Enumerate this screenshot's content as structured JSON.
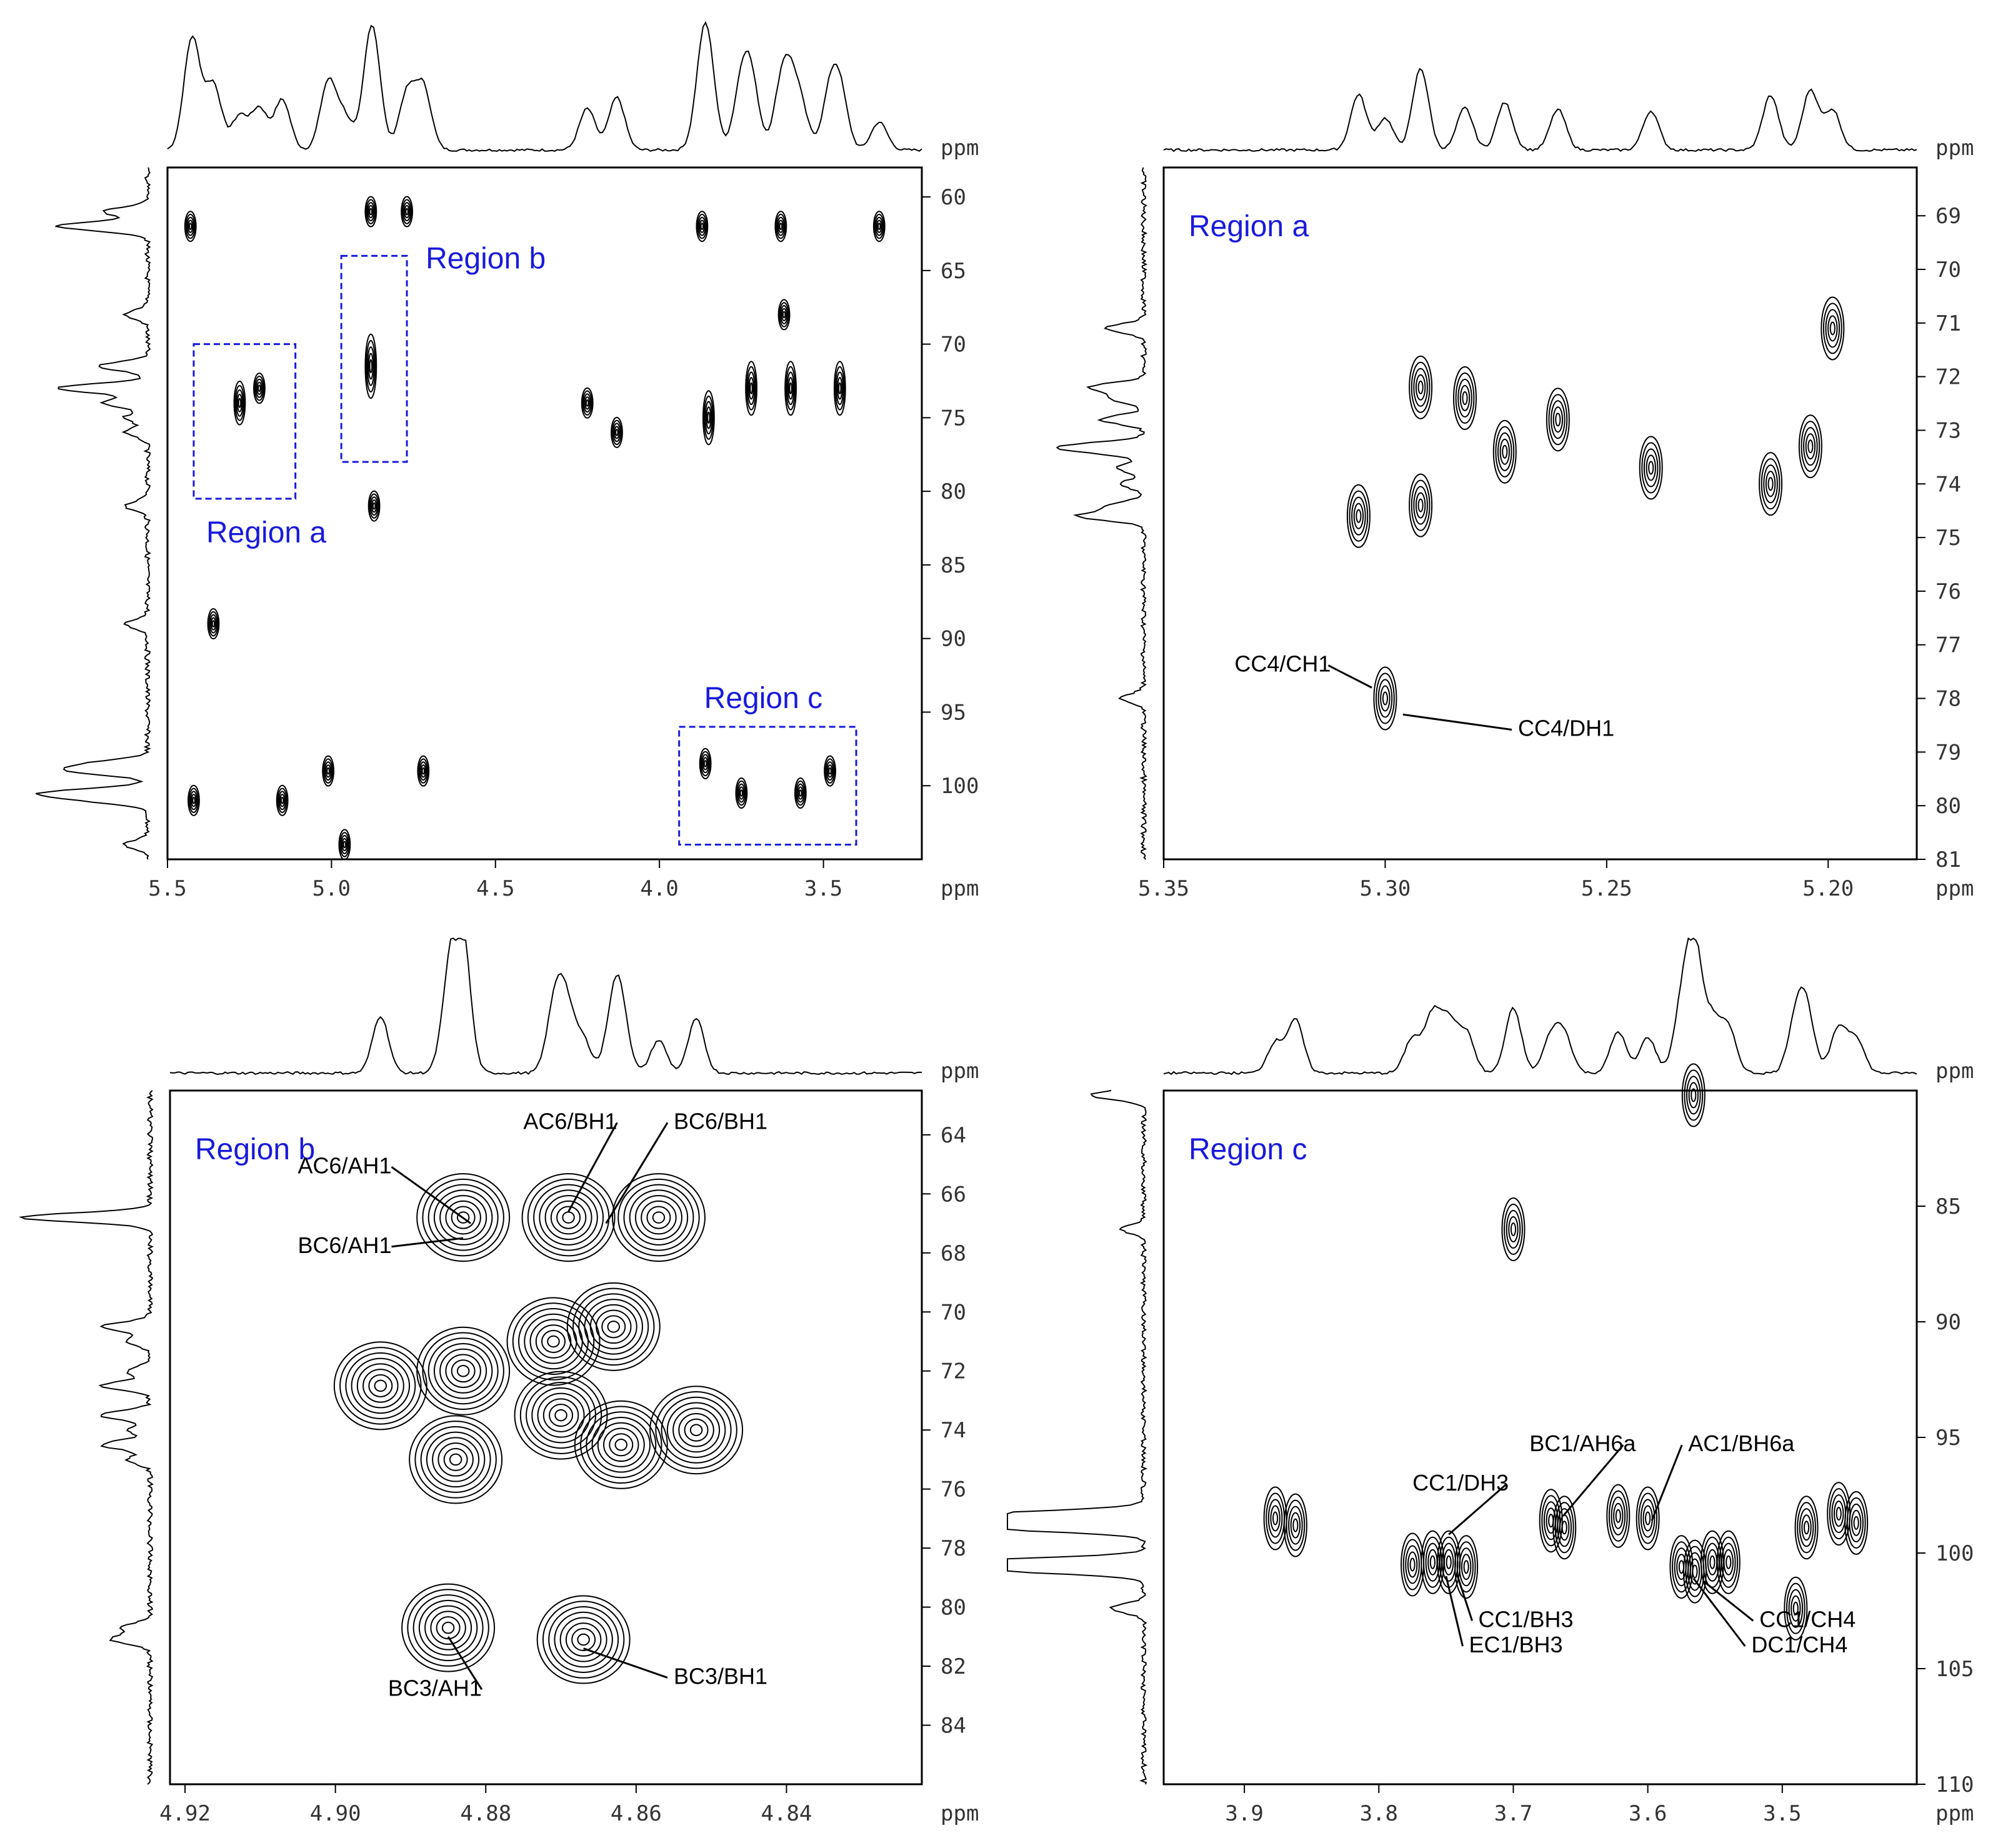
{
  "colors": {
    "frame": "#000000",
    "region": "#1a1adc",
    "contour": "#000000",
    "text": "#333333"
  },
  "chart_data": [
    {
      "type": "heatmap",
      "id": "overview",
      "x_unit": "ppm",
      "y_unit": "ppm",
      "x_reversed": true,
      "xlim": [
        5.5,
        3.2
      ],
      "ylim": [
        58,
        105
      ],
      "xticks": [
        "5.5",
        "5.0",
        "4.5",
        "4.0",
        "3.5"
      ],
      "yticks": [
        "60",
        "65",
        "70",
        "75",
        "80",
        "85",
        "90",
        "95",
        "100"
      ],
      "regions": [
        {
          "name": "Region a",
          "x": [
            5.42,
            5.11
          ],
          "y": [
            70,
            80.5
          ]
        },
        {
          "name": "Region b",
          "x": [
            4.97,
            4.77
          ],
          "y": [
            64,
            78
          ]
        },
        {
          "name": "Region c",
          "x": [
            3.94,
            3.4
          ],
          "y": [
            96,
            104
          ]
        }
      ],
      "peaks": [
        {
          "x": 5.28,
          "y": 74,
          "spread_y": 3
        },
        {
          "x": 5.22,
          "y": 73
        },
        {
          "x": 4.88,
          "y": 71.5,
          "spread_y": 5
        },
        {
          "x": 4.88,
          "y": 61
        },
        {
          "x": 4.77,
          "y": 61
        },
        {
          "x": 5.43,
          "y": 62
        },
        {
          "x": 5.01,
          "y": 99
        },
        {
          "x": 4.72,
          "y": 99
        },
        {
          "x": 5.42,
          "y": 101
        },
        {
          "x": 5.15,
          "y": 101
        },
        {
          "x": 4.96,
          "y": 104
        },
        {
          "x": 4.87,
          "y": 81
        },
        {
          "x": 5.36,
          "y": 89
        },
        {
          "x": 4.22,
          "y": 74
        },
        {
          "x": 4.13,
          "y": 76
        },
        {
          "x": 3.85,
          "y": 75,
          "spread_y": 4
        },
        {
          "x": 3.72,
          "y": 73,
          "spread_y": 4
        },
        {
          "x": 3.6,
          "y": 73,
          "spread_y": 4
        },
        {
          "x": 3.45,
          "y": 73,
          "spread_y": 4
        },
        {
          "x": 3.62,
          "y": 68
        },
        {
          "x": 3.87,
          "y": 62
        },
        {
          "x": 3.63,
          "y": 62
        },
        {
          "x": 3.33,
          "y": 62
        },
        {
          "x": 3.86,
          "y": 98.5
        },
        {
          "x": 3.75,
          "y": 100.5
        },
        {
          "x": 3.57,
          "y": 100.5
        },
        {
          "x": 3.48,
          "y": 99
        }
      ]
    },
    {
      "type": "heatmap",
      "id": "region-a",
      "title": "Region a",
      "x_unit": "ppm",
      "y_unit": "ppm",
      "x_reversed": true,
      "xlim": [
        5.35,
        5.18
      ],
      "ylim": [
        68.1,
        81
      ],
      "xticks": [
        "5.35",
        "5.30",
        "5.25",
        "5.20"
      ],
      "yticks": [
        "69",
        "70",
        "71",
        "72",
        "73",
        "74",
        "75",
        "76",
        "77",
        "78",
        "79",
        "80",
        "81"
      ],
      "labels": [
        {
          "text": "CC4/CH1",
          "x": 5.303,
          "y": 77.8,
          "tx": 5.334,
          "ty": 77.5
        },
        {
          "text": "CC4/DH1",
          "x": 5.296,
          "y": 78.3,
          "tx": 5.27,
          "ty": 78.7
        }
      ],
      "peaks": [
        {
          "x": 5.3,
          "y": 78.0
        },
        {
          "x": 5.292,
          "y": 74.4
        },
        {
          "x": 5.292,
          "y": 72.2
        },
        {
          "x": 5.306,
          "y": 74.6
        },
        {
          "x": 5.282,
          "y": 72.4
        },
        {
          "x": 5.273,
          "y": 73.4
        },
        {
          "x": 5.261,
          "y": 72.8
        },
        {
          "x": 5.24,
          "y": 73.7
        },
        {
          "x": 5.213,
          "y": 74.0
        },
        {
          "x": 5.204,
          "y": 73.3
        },
        {
          "x": 5.199,
          "y": 71.1
        }
      ]
    },
    {
      "type": "heatmap",
      "id": "region-b",
      "title": "Region b",
      "x_unit": "ppm",
      "y_unit": "ppm",
      "x_reversed": true,
      "xlim": [
        4.922,
        4.822
      ],
      "ylim": [
        62.5,
        86
      ],
      "xticks": [
        "4.92",
        "4.90",
        "4.88",
        "4.86",
        "4.84"
      ],
      "yticks": [
        "64",
        "66",
        "68",
        "70",
        "72",
        "74",
        "76",
        "78",
        "80",
        "82",
        "84"
      ],
      "labels": [
        {
          "text": "AC6/BH1",
          "x": 4.869,
          "y": 66.6,
          "tx": 4.875,
          "ty": 63.8
        },
        {
          "text": "BC6/BH1",
          "x": 4.864,
          "y": 67.0,
          "tx": 4.855,
          "ty": 63.8
        },
        {
          "text": "AC6/AH1",
          "x": 4.882,
          "y": 67.0,
          "tx": 4.905,
          "ty": 65.3
        },
        {
          "text": "BC6/AH1",
          "x": 4.883,
          "y": 67.5,
          "tx": 4.905,
          "ty": 68.0
        },
        {
          "text": "BC3/AH1",
          "x": 4.885,
          "y": 81.0,
          "tx": 4.893,
          "ty": 83.0
        },
        {
          "text": "BC3/BH1",
          "x": 4.867,
          "y": 81.4,
          "tx": 4.855,
          "ty": 82.6
        }
      ],
      "peaks": [
        {
          "x": 4.883,
          "y": 66.8
        },
        {
          "x": 4.869,
          "y": 66.8
        },
        {
          "x": 4.857,
          "y": 66.8
        },
        {
          "x": 4.883,
          "y": 72.0
        },
        {
          "x": 4.871,
          "y": 71.0
        },
        {
          "x": 4.863,
          "y": 70.5
        },
        {
          "x": 4.894,
          "y": 72.5
        },
        {
          "x": 4.87,
          "y": 73.5
        },
        {
          "x": 4.884,
          "y": 75.0
        },
        {
          "x": 4.862,
          "y": 74.5
        },
        {
          "x": 4.852,
          "y": 74.0
        },
        {
          "x": 4.885,
          "y": 80.7
        },
        {
          "x": 4.867,
          "y": 81.1
        }
      ]
    },
    {
      "type": "heatmap",
      "id": "region-c",
      "title": "Region c",
      "x_unit": "ppm",
      "y_unit": "ppm",
      "x_reversed": true,
      "xlim": [
        3.96,
        3.4
      ],
      "ylim": [
        80,
        110
      ],
      "xticks": [
        "3.9",
        "3.8",
        "3.7",
        "3.6",
        "3.5"
      ],
      "yticks": [
        "85",
        "90",
        "95",
        "100",
        "105",
        "110"
      ],
      "labels": [
        {
          "text": "CC1/DH3",
          "x": 3.748,
          "y": 99.2,
          "tx": 3.775,
          "ty": 97.3
        },
        {
          "text": "BC1/AH6a",
          "x": 3.663,
          "y": 98.4,
          "tx": 3.688,
          "ty": 95.6
        },
        {
          "text": "AC1/BH6a",
          "x": 3.597,
          "y": 98.6,
          "tx": 3.57,
          "ty": 95.6
        },
        {
          "text": "CC1/BH3",
          "x": 3.742,
          "y": 100.9,
          "tx": 3.726,
          "ty": 103.2
        },
        {
          "text": "EC1/BH3",
          "x": 3.75,
          "y": 101.0,
          "tx": 3.733,
          "ty": 104.3
        },
        {
          "text": "CC1/CH4",
          "x": 3.559,
          "y": 101.2,
          "tx": 3.517,
          "ty": 103.2
        },
        {
          "text": "DC1/CH4",
          "x": 3.566,
          "y": 101.1,
          "tx": 3.523,
          "ty": 104.3
        }
      ],
      "peaks": [
        {
          "x": 3.877,
          "y": 98.5
        },
        {
          "x": 3.862,
          "y": 98.8
        },
        {
          "x": 3.775,
          "y": 100.5
        },
        {
          "x": 3.76,
          "y": 100.4
        },
        {
          "x": 3.748,
          "y": 100.4
        },
        {
          "x": 3.735,
          "y": 100.6
        },
        {
          "x": 3.7,
          "y": 86.0
        },
        {
          "x": 3.672,
          "y": 98.6
        },
        {
          "x": 3.662,
          "y": 98.9
        },
        {
          "x": 3.622,
          "y": 98.4
        },
        {
          "x": 3.6,
          "y": 98.5
        },
        {
          "x": 3.575,
          "y": 100.6
        },
        {
          "x": 3.565,
          "y": 100.8
        },
        {
          "x": 3.552,
          "y": 100.4
        },
        {
          "x": 3.54,
          "y": 100.4
        },
        {
          "x": 3.482,
          "y": 98.9
        },
        {
          "x": 3.458,
          "y": 98.3
        },
        {
          "x": 3.445,
          "y": 98.7
        },
        {
          "x": 3.49,
          "y": 102.4
        },
        {
          "x": 3.566,
          "y": 80.2
        }
      ]
    }
  ]
}
